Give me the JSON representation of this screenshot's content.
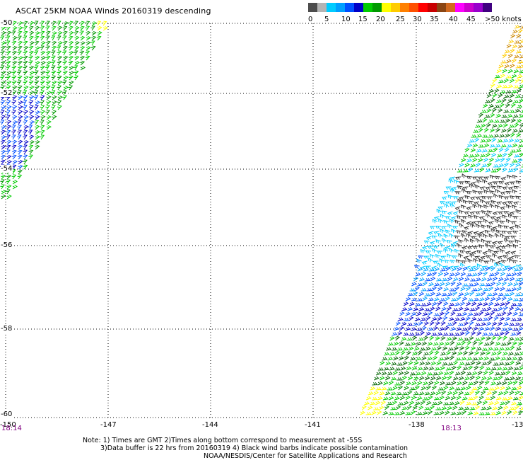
{
  "title": "ASCAT 25KM NOAA Winds 20160319 descending",
  "legend": {
    "colors": [
      "#4d4d4d",
      "#b4b4b4",
      "#00ccff",
      "#00a0ff",
      "#0050ff",
      "#0000c8",
      "#00cc00",
      "#009900",
      "#ffff00",
      "#ffcc00",
      "#ff8000",
      "#ff5000",
      "#ff0000",
      "#c80000",
      "#8b4513",
      "#d2691e",
      "#ff00ff",
      "#cc00cc",
      "#9900cc",
      "#400080"
    ],
    "labels": [
      "0",
      "5",
      "10",
      "15",
      "20",
      "25",
      "30",
      "35",
      "40",
      "45",
      ">50 knots"
    ]
  },
  "lat_labels": [
    "-50",
    "-52",
    "-54",
    "-56",
    "-58",
    "-60"
  ],
  "lon_labels": [
    "-150",
    "-147",
    "-144",
    "-141",
    "-138",
    "-13"
  ],
  "times": [
    "18:14",
    "18:13"
  ],
  "notes": [
    "Note: 1) Times are GMT 2)Times along bottom correspond to measurement at -55S",
    "3)Data buffer is 22 hrs from 20160319 4) Black wind barbs indicate possible contamination",
    "NOAA/NESDIS/Center for Satellite Applications and Research"
  ]
}
